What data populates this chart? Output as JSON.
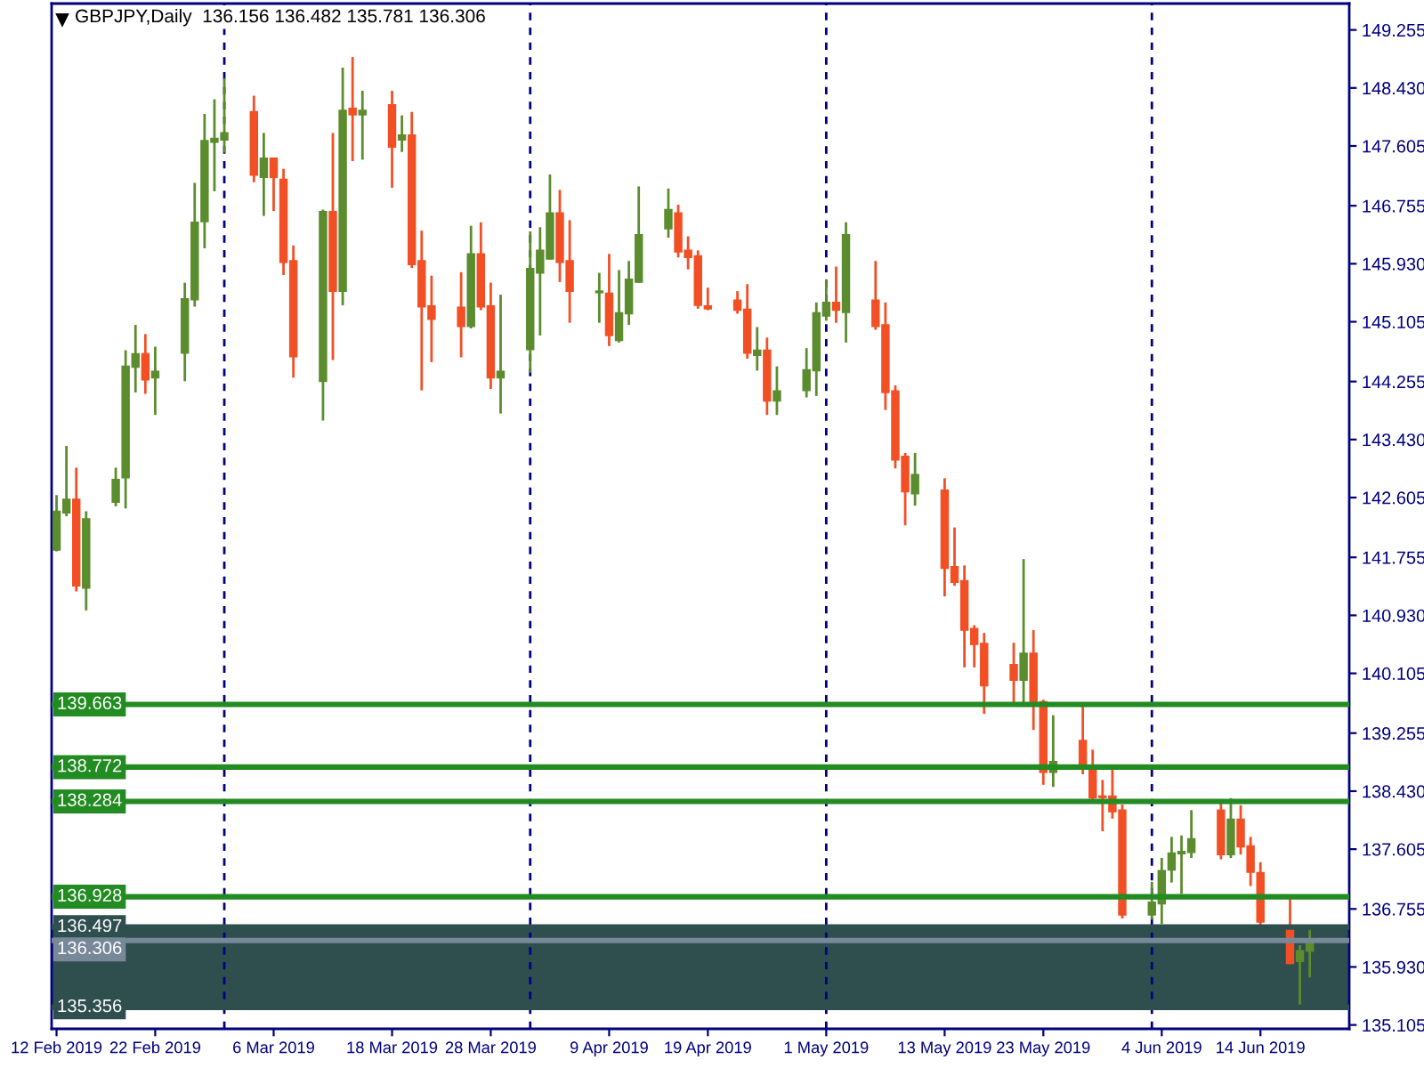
{
  "chart_data": {
    "type": "candlestick",
    "title": "GBPJPY,Daily  136.156 136.482 135.781 136.306",
    "x": [
      "2019-02-12",
      "2019-02-13",
      "2019-02-14",
      "2019-02-15",
      "2019-02-18",
      "2019-02-19",
      "2019-02-20",
      "2019-02-21",
      "2019-02-22",
      "2019-02-25",
      "2019-02-26",
      "2019-02-27",
      "2019-02-28",
      "2019-03-01",
      "2019-03-04",
      "2019-03-05",
      "2019-03-06",
      "2019-03-07",
      "2019-03-08",
      "2019-03-11",
      "2019-03-12",
      "2019-03-13",
      "2019-03-14",
      "2019-03-15",
      "2019-03-18",
      "2019-03-19",
      "2019-03-20",
      "2019-03-21",
      "2019-03-22",
      "2019-03-25",
      "2019-03-26",
      "2019-03-27",
      "2019-03-28",
      "2019-03-29",
      "2019-04-01",
      "2019-04-02",
      "2019-04-03",
      "2019-04-04",
      "2019-04-05",
      "2019-04-08",
      "2019-04-09",
      "2019-04-10",
      "2019-04-11",
      "2019-04-12",
      "2019-04-15",
      "2019-04-16",
      "2019-04-17",
      "2019-04-18",
      "2019-04-19",
      "2019-04-22",
      "2019-04-23",
      "2019-04-24",
      "2019-04-25",
      "2019-04-26",
      "2019-04-29",
      "2019-04-30",
      "2019-05-01",
      "2019-05-02",
      "2019-05-03",
      "2019-05-06",
      "2019-05-07",
      "2019-05-08",
      "2019-05-09",
      "2019-05-10",
      "2019-05-13",
      "2019-05-14",
      "2019-05-15",
      "2019-05-16",
      "2019-05-17",
      "2019-05-20",
      "2019-05-21",
      "2019-05-22",
      "2019-05-23",
      "2019-05-24",
      "2019-05-27",
      "2019-05-28",
      "2019-05-29",
      "2019-05-30",
      "2019-05-31",
      "2019-06-03",
      "2019-06-04",
      "2019-06-05",
      "2019-06-06",
      "2019-06-07",
      "2019-06-10",
      "2019-06-11",
      "2019-06-12",
      "2019-06-13",
      "2019-06-14",
      "2019-06-17",
      "2019-06-18",
      "2019-06-19"
    ],
    "ohlc": [
      [
        141.86,
        142.64,
        141.84,
        142.41
      ],
      [
        142.39,
        143.34,
        142.34,
        142.58
      ],
      [
        142.58,
        143.03,
        141.27,
        141.35
      ],
      [
        141.32,
        142.41,
        141.0,
        142.3
      ],
      [
        142.54,
        143.03,
        142.48,
        142.86
      ],
      [
        142.89,
        144.7,
        142.45,
        144.47
      ],
      [
        144.46,
        145.06,
        144.1,
        144.65
      ],
      [
        144.65,
        144.93,
        144.08,
        144.28
      ],
      [
        144.31,
        144.75,
        143.78,
        144.4
      ],
      [
        144.66,
        145.66,
        144.26,
        145.43
      ],
      [
        145.42,
        147.08,
        145.32,
        146.52
      ],
      [
        146.53,
        148.06,
        146.15,
        147.68
      ],
      [
        147.66,
        148.27,
        146.96,
        147.71
      ],
      [
        147.69,
        148.57,
        147.51,
        147.79
      ],
      [
        148.09,
        148.32,
        147.09,
        147.19
      ],
      [
        147.16,
        147.79,
        146.61,
        147.43
      ],
      [
        147.43,
        147.43,
        146.68,
        147.16
      ],
      [
        147.13,
        147.28,
        145.77,
        145.95
      ],
      [
        145.97,
        146.19,
        144.31,
        144.61
      ],
      [
        144.26,
        146.7,
        143.7,
        146.67
      ],
      [
        146.67,
        147.79,
        144.56,
        145.54
      ],
      [
        145.54,
        148.72,
        145.34,
        148.11
      ],
      [
        148.14,
        148.87,
        147.39,
        148.05
      ],
      [
        148.05,
        148.39,
        147.41,
        148.11
      ],
      [
        148.19,
        148.39,
        147.01,
        147.59
      ],
      [
        147.69,
        148.04,
        147.52,
        147.76
      ],
      [
        147.76,
        148.09,
        145.87,
        145.92
      ],
      [
        145.97,
        146.4,
        144.13,
        145.32
      ],
      [
        145.33,
        145.76,
        144.53,
        145.14
      ],
      [
        145.31,
        145.81,
        144.6,
        145.04
      ],
      [
        145.04,
        146.47,
        145.01,
        146.07
      ],
      [
        146.07,
        146.52,
        145.27,
        145.32
      ],
      [
        145.33,
        145.66,
        144.15,
        144.31
      ],
      [
        144.31,
        145.49,
        143.8,
        144.4
      ],
      [
        144.71,
        146.39,
        144.38,
        145.86
      ],
      [
        145.8,
        146.45,
        144.91,
        146.12
      ],
      [
        146.0,
        147.2,
        145.99,
        146.65
      ],
      [
        146.65,
        146.98,
        145.67,
        145.95
      ],
      [
        145.97,
        146.55,
        145.09,
        145.54
      ],
      [
        145.52,
        145.8,
        145.09,
        145.54
      ],
      [
        145.51,
        146.07,
        144.76,
        144.91
      ],
      [
        144.84,
        145.84,
        144.81,
        145.23
      ],
      [
        145.22,
        145.97,
        145.06,
        145.71
      ],
      [
        145.67,
        147.03,
        145.66,
        146.34
      ],
      [
        146.43,
        147.0,
        146.3,
        146.7
      ],
      [
        146.65,
        146.77,
        146.02,
        146.1
      ],
      [
        146.12,
        146.32,
        145.85,
        146.02
      ],
      [
        146.04,
        146.12,
        145.29,
        145.34
      ],
      [
        145.33,
        145.59,
        145.27,
        145.29
      ],
      [
        145.41,
        145.54,
        145.22,
        145.27
      ],
      [
        145.28,
        145.64,
        144.58,
        144.66
      ],
      [
        144.63,
        145.03,
        144.41,
        144.7
      ],
      [
        144.7,
        144.88,
        143.78,
        143.98
      ],
      [
        143.98,
        144.47,
        143.78,
        144.12
      ],
      [
        144.13,
        144.73,
        144.03,
        144.42
      ],
      [
        144.41,
        145.38,
        144.05,
        145.23
      ],
      [
        145.19,
        145.71,
        145.12,
        145.38
      ],
      [
        145.38,
        145.89,
        145.09,
        145.27
      ],
      [
        145.24,
        146.52,
        144.81,
        146.34
      ],
      [
        145.41,
        145.97,
        144.99,
        145.04
      ],
      [
        145.06,
        145.38,
        143.85,
        144.1
      ],
      [
        144.12,
        144.2,
        143.02,
        143.14
      ],
      [
        143.19,
        143.24,
        142.21,
        142.69
      ],
      [
        142.66,
        143.24,
        142.49,
        142.93
      ],
      [
        142.71,
        142.88,
        141.2,
        141.6
      ],
      [
        141.62,
        142.18,
        141.35,
        141.4
      ],
      [
        141.42,
        141.64,
        140.19,
        140.72
      ],
      [
        140.74,
        140.79,
        140.19,
        140.52
      ],
      [
        140.53,
        140.68,
        139.53,
        139.93
      ],
      [
        140.23,
        140.54,
        139.68,
        140.01
      ],
      [
        140.01,
        141.73,
        139.63,
        140.39
      ],
      [
        140.39,
        140.72,
        139.3,
        139.68
      ],
      [
        139.7,
        139.73,
        138.52,
        138.7
      ],
      [
        138.7,
        139.51,
        138.49,
        138.85
      ],
      [
        139.15,
        139.65,
        138.67,
        138.77
      ],
      [
        138.79,
        139.02,
        138.27,
        138.34
      ],
      [
        138.36,
        138.59,
        137.86,
        138.34
      ],
      [
        138.36,
        138.75,
        138.04,
        138.14
      ],
      [
        138.16,
        138.24,
        136.62,
        136.67
      ],
      [
        136.67,
        137.14,
        136.6,
        136.85
      ],
      [
        136.83,
        137.48,
        136.54,
        137.3
      ],
      [
        137.31,
        137.78,
        137.13,
        137.55
      ],
      [
        137.54,
        137.8,
        136.97,
        137.57
      ],
      [
        137.56,
        138.16,
        137.48,
        137.75
      ],
      [
        138.16,
        138.27,
        137.46,
        137.53
      ],
      [
        137.53,
        138.33,
        137.48,
        138.03
      ],
      [
        138.03,
        138.23,
        137.53,
        137.64
      ],
      [
        137.65,
        137.78,
        137.08,
        137.28
      ],
      [
        137.27,
        137.42,
        136.5,
        136.57
      ],
      [
        136.49,
        136.94,
        135.97,
        135.98
      ],
      [
        136.01,
        136.24,
        135.36,
        136.16
      ],
      [
        136.156,
        136.482,
        135.781,
        136.306
      ]
    ],
    "colors": [
      "#5b8c2e",
      "#5b8c2e",
      "#f24f25",
      "#5b8c2e",
      "#5b8c2e",
      "#5b8c2e",
      "#5b8c2e",
      "#f24f25",
      "#5b8c2e",
      "#5b8c2e",
      "#5b8c2e",
      "#5b8c2e",
      "#5b8c2e",
      "#5b8c2e",
      "#f24f25",
      "#5b8c2e",
      "#f24f25",
      "#f24f25",
      "#f24f25",
      "#5b8c2e",
      "#f24f25",
      "#5b8c2e",
      "#f24f25",
      "#5b8c2e",
      "#f24f25",
      "#5b8c2e",
      "#f24f25",
      "#f24f25",
      "#f24f25",
      "#f24f25",
      "#5b8c2e",
      "#f24f25",
      "#f24f25",
      "#5b8c2e",
      "#5b8c2e",
      "#5b8c2e",
      "#5b8c2e",
      "#f24f25",
      "#f24f25",
      "#5b8c2e",
      "#f24f25",
      "#5b8c2e",
      "#5b8c2e",
      "#5b8c2e",
      "#5b8c2e",
      "#f24f25",
      "#f24f25",
      "#f24f25",
      "#f24f25",
      "#f24f25",
      "#f24f25",
      "#5b8c2e",
      "#f24f25",
      "#5b8c2e",
      "#5b8c2e",
      "#5b8c2e",
      "#5b8c2e",
      "#f24f25",
      "#5b8c2e",
      "#f24f25",
      "#f24f25",
      "#f24f25",
      "#f24f25",
      "#5b8c2e",
      "#f24f25",
      "#f24f25",
      "#f24f25",
      "#f24f25",
      "#f24f25",
      "#f24f25",
      "#5b8c2e",
      "#f24f25",
      "#f24f25",
      "#5b8c2e",
      "#f24f25",
      "#f24f25",
      "#f24f25",
      "#f24f25",
      "#f24f25",
      "#5b8c2e",
      "#5b8c2e",
      "#5b8c2e",
      "#5b8c2e",
      "#5b8c2e",
      "#f24f25",
      "#5b8c2e",
      "#f24f25",
      "#f24f25",
      "#f24f25",
      "#f24f25",
      "#5b8c2e",
      "#5b8c2e"
    ],
    "xlim": [
      "2019-02-11T12:00",
      "2019-06-23"
    ],
    "xticks": [
      {
        "value": "2019-02-12",
        "label": "12 Feb 2019"
      },
      {
        "value": "2019-02-22",
        "label": "22 Feb 2019"
      },
      {
        "value": "2019-03-06",
        "label": "6 Mar 2019"
      },
      {
        "value": "2019-03-18",
        "label": "18 Mar 2019"
      },
      {
        "value": "2019-03-28",
        "label": "28 Mar 2019"
      },
      {
        "value": "2019-04-09",
        "label": "9 Apr 2019"
      },
      {
        "value": "2019-04-19",
        "label": "19 Apr 2019"
      },
      {
        "value": "2019-05-01",
        "label": "1 May 2019"
      },
      {
        "value": "2019-05-13",
        "label": "13 May 2019"
      },
      {
        "value": "2019-05-23",
        "label": "23 May 2019"
      },
      {
        "value": "2019-06-04",
        "label": "4 Jun 2019"
      },
      {
        "value": "2019-06-14",
        "label": "14 Jun 2019"
      }
    ],
    "ylim": [
      135.05,
      149.63
    ],
    "yticks": [
      149.255,
      {
        "value": 148.43,
        "label": "148.430"
      },
      147.605,
      146.755,
      {
        "value": 145.93,
        "label": "145.930"
      },
      145.105,
      144.255,
      {
        "value": 143.43,
        "label": "143.430"
      },
      142.605,
      141.755,
      {
        "value": 140.93,
        "label": "140.930"
      },
      140.105,
      139.255,
      {
        "value": 138.43,
        "label": "138.430"
      },
      137.605,
      136.755,
      {
        "value": 135.93,
        "label": "135.930"
      },
      135.105
    ],
    "ref_lines": [
      {
        "axis": "x",
        "value": "2019-03-01",
        "color": "#000080",
        "line_style": "dashed"
      },
      {
        "axis": "x",
        "value": "2019-04-01",
        "color": "#000080",
        "line_style": "dashed"
      },
      {
        "axis": "x",
        "value": "2019-05-01",
        "color": "#000080",
        "line_style": "dashed"
      },
      {
        "axis": "x",
        "value": "2019-06-03",
        "color": "#000080",
        "line_style": "dashed"
      },
      {
        "axis": "y",
        "value": 139.663,
        "label": "139.663",
        "color": "#228b22"
      },
      {
        "axis": "y",
        "value": 138.772,
        "label": "138.772",
        "color": "#228b22"
      },
      {
        "axis": "y",
        "value": 138.284,
        "label": "138.284",
        "color": "#228b22"
      },
      {
        "axis": "y",
        "value": 136.928,
        "label": "136.928",
        "color": "#228b22"
      },
      {
        "axis": "y",
        "value": 136.497,
        "label": "136.497",
        "color": "#2f4f4f"
      },
      {
        "axis": "y",
        "value": 136.306,
        "label": "136.306",
        "color": "#778899"
      },
      {
        "axis": "y",
        "value": 135.356,
        "label": "135.356",
        "color": "#2f4f4f"
      }
    ],
    "bands": [
      {
        "axis": "y",
        "from": 135.356,
        "to": 136.497,
        "color": "#2f4f4f"
      }
    ]
  }
}
